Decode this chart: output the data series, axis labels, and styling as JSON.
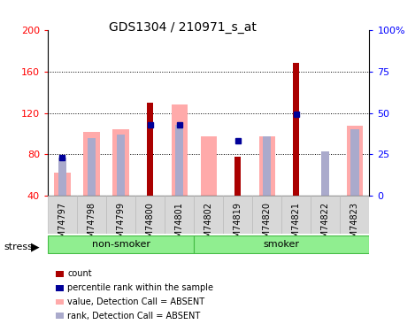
{
  "title": "GDS1304 / 210971_s_at",
  "samples": [
    "GSM74797",
    "GSM74798",
    "GSM74799",
    "GSM74800",
    "GSM74801",
    "GSM74802",
    "GSM74819",
    "GSM74820",
    "GSM74821",
    "GSM74822",
    "GSM74823"
  ],
  "value_absent": [
    62,
    102,
    104,
    null,
    128,
    97,
    null,
    97,
    null,
    null,
    108
  ],
  "rank_absent_pct": [
    23,
    35,
    37,
    null,
    43,
    null,
    null,
    36,
    null,
    27,
    40
  ],
  "count": [
    null,
    null,
    null,
    130,
    null,
    null,
    78,
    null,
    168,
    null,
    null
  ],
  "percentile_pct": [
    23,
    null,
    null,
    43,
    43,
    null,
    33,
    null,
    49,
    null,
    null
  ],
  "ylim_left": [
    40,
    200
  ],
  "ylim_right": [
    0,
    100
  ],
  "left_ticks": [
    40,
    80,
    120,
    160,
    200
  ],
  "right_ticks": [
    0,
    25,
    50,
    75,
    100
  ],
  "right_tick_labels": [
    "0",
    "25",
    "50",
    "75",
    "100%"
  ],
  "color_count": "#aa0000",
  "color_percentile": "#000099",
  "color_value_absent": "#ffaaaa",
  "color_rank_absent": "#aaaacc",
  "legend_items": [
    {
      "color": "#aa0000",
      "label": "count"
    },
    {
      "color": "#000099",
      "label": "percentile rank within the sample"
    },
    {
      "color": "#ffaaaa",
      "label": "value, Detection Call = ABSENT"
    },
    {
      "color": "#aaaacc",
      "label": "rank, Detection Call = ABSENT"
    }
  ],
  "non_smoker_count": 5,
  "smoker_count": 6
}
